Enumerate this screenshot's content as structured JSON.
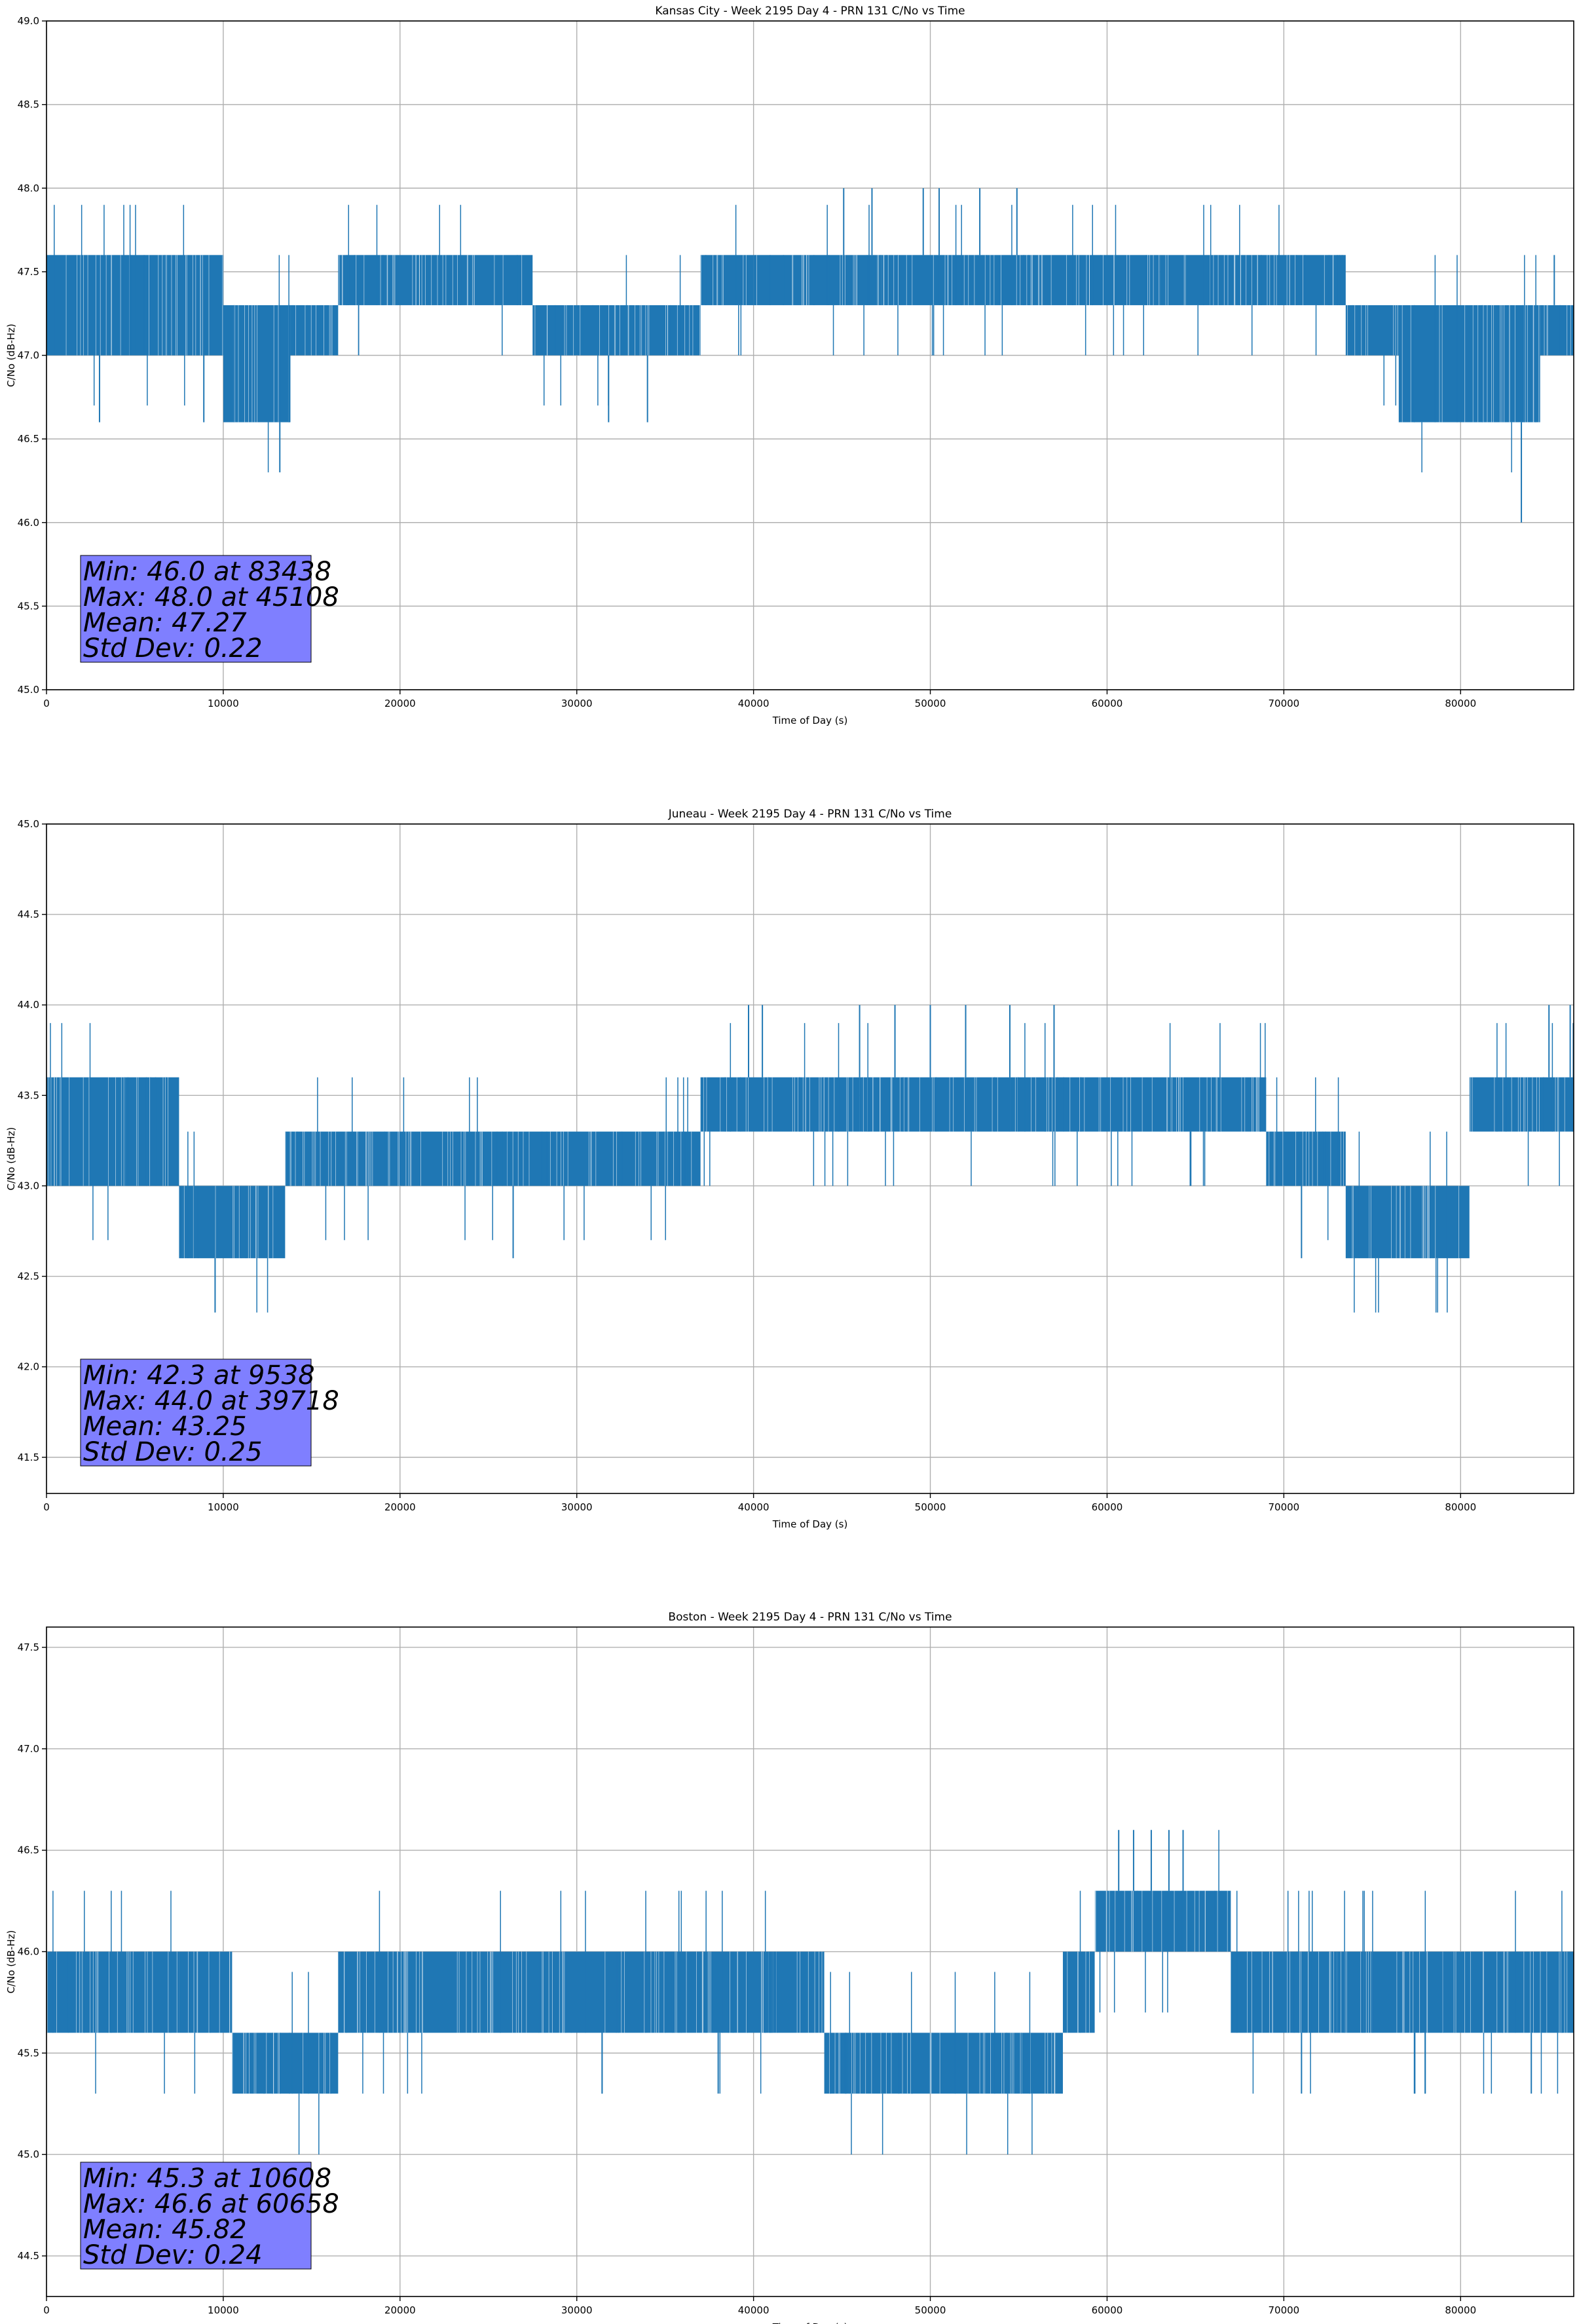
{
  "chart_data": [
    {
      "type": "line",
      "title": "Kansas City - Week 2195 Day 4 - PRN 131 C/No vs Time",
      "xlabel": "Time of Day (s)",
      "ylabel": "C/No (dB-Hz)",
      "xlim": [
        0,
        86400
      ],
      "ylim": [
        45.0,
        49.0
      ],
      "xticks": [
        0,
        10000,
        20000,
        30000,
        40000,
        50000,
        60000,
        70000,
        80000
      ],
      "yticks": [
        "45.0",
        "45.5",
        "46.0",
        "46.5",
        "47.0",
        "47.5",
        "48.0",
        "48.5",
        "49.0"
      ],
      "grid": true,
      "series": [
        {
          "name": "C/No",
          "color": "#1f77b4"
        }
      ],
      "bands": [
        {
          "x": [
            0,
            10000
          ],
          "y": [
            47.0,
            47.6
          ]
        },
        {
          "x": [
            10000,
            13800
          ],
          "y": [
            46.6,
            47.3
          ]
        },
        {
          "x": [
            13800,
            16500
          ],
          "y": [
            47.0,
            47.3
          ]
        },
        {
          "x": [
            16500,
            27500
          ],
          "y": [
            47.3,
            47.6
          ]
        },
        {
          "x": [
            27500,
            37000
          ],
          "y": [
            47.0,
            47.3
          ]
        },
        {
          "x": [
            37000,
            40000
          ],
          "y": [
            47.3,
            47.6
          ]
        },
        {
          "x": [
            40000,
            63000
          ],
          "y": [
            47.3,
            47.6
          ]
        },
        {
          "x": [
            63000,
            73500
          ],
          "y": [
            47.3,
            47.6
          ]
        },
        {
          "x": [
            73500,
            76500
          ],
          "y": [
            47.0,
            47.3
          ]
        },
        {
          "x": [
            76500,
            84500
          ],
          "y": [
            46.6,
            47.3
          ]
        },
        {
          "x": [
            84500,
            86400
          ],
          "y": [
            47.0,
            47.3
          ]
        }
      ],
      "spikes": [
        [
          3000,
          46.6
        ],
        [
          8900,
          46.6
        ],
        [
          13200,
          46.3
        ],
        [
          31800,
          46.6
        ],
        [
          34000,
          46.6
        ],
        [
          45100,
          48.0
        ],
        [
          46700,
          48.0
        ],
        [
          49600,
          48.0
        ],
        [
          50500,
          48.0
        ],
        [
          52800,
          48.0
        ],
        [
          54900,
          48.0
        ],
        [
          83438,
          46.0
        ],
        [
          85300,
          47.6
        ]
      ],
      "annotation": {
        "lines": [
          "Min: 46.0 at 83438",
          "Max: 48.0 at 45108",
          "Mean: 47.27",
          "Std Dev: 0.22"
        ],
        "box_color": "#7f7fff"
      }
    },
    {
      "type": "line",
      "title": "Juneau - Week 2195 Day 4 - PRN 131 C/No vs Time",
      "xlabel": "Time of Day (s)",
      "ylabel": "C/No (dB-Hz)",
      "xlim": [
        0,
        86400
      ],
      "ylim": [
        41.3,
        45.0
      ],
      "xticks": [
        0,
        10000,
        20000,
        30000,
        40000,
        50000,
        60000,
        70000,
        80000
      ],
      "yticks": [
        "41.5",
        "42.0",
        "42.5",
        "43.0",
        "43.5",
        "44.0",
        "44.5",
        "45.0"
      ],
      "grid": true,
      "series": [
        {
          "name": "C/No",
          "color": "#1f77b4"
        }
      ],
      "bands": [
        {
          "x": [
            0,
            7500
          ],
          "y": [
            43.0,
            43.6
          ]
        },
        {
          "x": [
            7500,
            13500
          ],
          "y": [
            42.6,
            43.0
          ]
        },
        {
          "x": [
            13500,
            37000
          ],
          "y": [
            43.0,
            43.3
          ]
        },
        {
          "x": [
            37000,
            46000
          ],
          "y": [
            43.3,
            43.6
          ]
        },
        {
          "x": [
            46000,
            56000
          ],
          "y": [
            43.3,
            43.6
          ]
        },
        {
          "x": [
            56000,
            69000
          ],
          "y": [
            43.3,
            43.6
          ]
        },
        {
          "x": [
            69000,
            73500
          ],
          "y": [
            43.0,
            43.3
          ]
        },
        {
          "x": [
            73500,
            80500
          ],
          "y": [
            42.6,
            43.0
          ]
        },
        {
          "x": [
            80500,
            86400
          ],
          "y": [
            43.3,
            43.6
          ]
        }
      ],
      "spikes": [
        [
          9538,
          42.3
        ],
        [
          26400,
          42.6
        ],
        [
          39718,
          44.0
        ],
        [
          40500,
          44.0
        ],
        [
          46000,
          44.0
        ],
        [
          48000,
          44.0
        ],
        [
          50000,
          44.0
        ],
        [
          52000,
          44.0
        ],
        [
          54500,
          44.0
        ],
        [
          57000,
          44.0
        ],
        [
          71000,
          42.6
        ],
        [
          85000,
          44.0
        ],
        [
          86200,
          44.0
        ]
      ],
      "annotation": {
        "lines": [
          "Min: 42.3 at 9538",
          "Max: 44.0 at 39718",
          "Mean: 43.25",
          "Std Dev: 0.25"
        ],
        "box_color": "#7f7fff"
      }
    },
    {
      "type": "line",
      "title": "Boston - Week 2195 Day 4 - PRN 131 C/No vs Time",
      "xlabel": "Time of Day (s)",
      "ylabel": "C/No (dB-Hz)",
      "xlim": [
        0,
        86400
      ],
      "ylim": [
        44.3,
        47.6
      ],
      "xticks": [
        0,
        10000,
        20000,
        30000,
        40000,
        50000,
        60000,
        70000,
        80000
      ],
      "yticks": [
        "44.5",
        "45.0",
        "45.5",
        "46.0",
        "46.5",
        "47.0",
        "47.5"
      ],
      "grid": true,
      "series": [
        {
          "name": "C/No",
          "color": "#1f77b4"
        }
      ],
      "bands": [
        {
          "x": [
            0,
            7500
          ],
          "y": [
            45.6,
            46.0
          ]
        },
        {
          "x": [
            7500,
            10500
          ],
          "y": [
            45.6,
            46.0
          ]
        },
        {
          "x": [
            10500,
            16500
          ],
          "y": [
            45.3,
            45.6
          ]
        },
        {
          "x": [
            16500,
            44000
          ],
          "y": [
            45.6,
            46.0
          ]
        },
        {
          "x": [
            44000,
            57500
          ],
          "y": [
            45.3,
            45.6
          ]
        },
        {
          "x": [
            57500,
            59300
          ],
          "y": [
            45.6,
            46.0
          ]
        },
        {
          "x": [
            59300,
            65500
          ],
          "y": [
            46.0,
            46.3
          ]
        },
        {
          "x": [
            65500,
            67000
          ],
          "y": [
            46.0,
            46.3
          ]
        },
        {
          "x": [
            67000,
            73000
          ],
          "y": [
            45.6,
            46.0
          ]
        },
        {
          "x": [
            73000,
            86400
          ],
          "y": [
            45.6,
            46.0
          ]
        }
      ],
      "spikes": [
        [
          10608,
          45.3
        ],
        [
          38000,
          45.3
        ],
        [
          60658,
          46.6
        ],
        [
          61500,
          46.6
        ],
        [
          62500,
          46.6
        ],
        [
          63500,
          46.6
        ],
        [
          64300,
          46.6
        ],
        [
          71000,
          45.3
        ],
        [
          78000,
          45.3
        ],
        [
          84000,
          45.3
        ]
      ],
      "annotation": {
        "lines": [
          "Min: 45.3 at 10608",
          "Max: 46.6 at 60658",
          "Mean: 45.82",
          "Std Dev: 0.24"
        ],
        "box_color": "#7f7fff"
      }
    }
  ]
}
